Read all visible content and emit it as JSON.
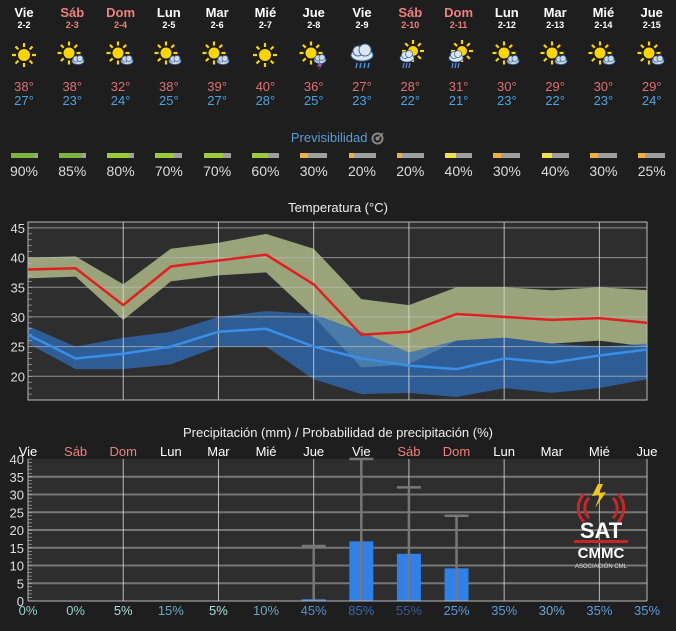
{
  "days": [
    {
      "name": "Vie",
      "date": "2-2",
      "weekend": false,
      "icon": "sun-icon",
      "max": "38°",
      "min": "27°"
    },
    {
      "name": "Sáb",
      "date": "2-3",
      "weekend": true,
      "icon": "sun-cloud-icon",
      "max": "38°",
      "min": "23°"
    },
    {
      "name": "Dom",
      "date": "2-4",
      "weekend": true,
      "icon": "sun-cloud-icon",
      "max": "32°",
      "min": "24°"
    },
    {
      "name": "Lun",
      "date": "2-5",
      "weekend": false,
      "icon": "sun-cloud-icon",
      "max": "38°",
      "min": "25°"
    },
    {
      "name": "Mar",
      "date": "2-6",
      "weekend": false,
      "icon": "sun-cloud-icon",
      "max": "39°",
      "min": "27°"
    },
    {
      "name": "Mié",
      "date": "2-7",
      "weekend": false,
      "icon": "sun-icon",
      "max": "40°",
      "min": "28°"
    },
    {
      "name": "Jue",
      "date": "2-8",
      "weekend": false,
      "icon": "sun-storm-icon",
      "max": "36°",
      "min": "25°"
    },
    {
      "name": "Vie",
      "date": "2-9",
      "weekend": false,
      "icon": "rain-cloud-icon",
      "max": "27°",
      "min": "23°"
    },
    {
      "name": "Sáb",
      "date": "2-10",
      "weekend": true,
      "icon": "sun-rain-icon",
      "max": "28°",
      "min": "22°"
    },
    {
      "name": "Dom",
      "date": "2-11",
      "weekend": true,
      "icon": "sun-rain-icon",
      "max": "31°",
      "min": "21°"
    },
    {
      "name": "Lun",
      "date": "2-12",
      "weekend": false,
      "icon": "sun-cloud-icon",
      "max": "30°",
      "min": "23°"
    },
    {
      "name": "Mar",
      "date": "2-13",
      "weekend": false,
      "icon": "sun-cloud-icon",
      "max": "29°",
      "min": "22°"
    },
    {
      "name": "Mié",
      "date": "2-14",
      "weekend": false,
      "icon": "sun-cloud-icon",
      "max": "30°",
      "min": "23°"
    },
    {
      "name": "Jue",
      "date": "2-15",
      "weekend": false,
      "icon": "sun-cloud-icon",
      "max": "29°",
      "min": "24°"
    }
  ],
  "predictability": {
    "title": "Previsibilidad",
    "icon": "target-icon",
    "values": [
      {
        "label": "90%",
        "value": 0.9,
        "color": "#7cb342"
      },
      {
        "label": "85%",
        "value": 0.85,
        "color": "#7cb342"
      },
      {
        "label": "80%",
        "value": 0.8,
        "color": "#9ccc3c"
      },
      {
        "label": "70%",
        "value": 0.7,
        "color": "#9ccc3c"
      },
      {
        "label": "70%",
        "value": 0.7,
        "color": "#9ccc3c"
      },
      {
        "label": "60%",
        "value": 0.6,
        "color": "#9ccc3c"
      },
      {
        "label": "30%",
        "value": 0.3,
        "color": "#f0b040"
      },
      {
        "label": "20%",
        "value": 0.2,
        "color": "#f0b040"
      },
      {
        "label": "20%",
        "value": 0.2,
        "color": "#f0b040"
      },
      {
        "label": "40%",
        "value": 0.4,
        "color": "#f0e050"
      },
      {
        "label": "30%",
        "value": 0.3,
        "color": "#f0b040"
      },
      {
        "label": "40%",
        "value": 0.4,
        "color": "#f0e050"
      },
      {
        "label": "30%",
        "value": 0.3,
        "color": "#f0b040"
      },
      {
        "label": "25%",
        "value": 0.25,
        "color": "#f0b040"
      }
    ]
  },
  "chart_data": [
    {
      "type": "line",
      "title": "Temperatura (°C)",
      "xlabel": "",
      "ylabel": "",
      "ylim": [
        16,
        46
      ],
      "yticks": [
        20,
        25,
        30,
        35,
        40,
        45
      ],
      "x": [
        "2-2",
        "2-3",
        "2-4",
        "2-5",
        "2-6",
        "2-7",
        "2-8",
        "2-9",
        "2-10",
        "2-11",
        "2-12",
        "2-13",
        "2-14",
        "2-15"
      ],
      "grid": true,
      "series": [
        {
          "name": "max",
          "color": "#e02020",
          "values": [
            38,
            38.2,
            32,
            38.5,
            39.5,
            40.5,
            35.5,
            27,
            27.5,
            30.5,
            30,
            29.5,
            29.8,
            29
          ]
        },
        {
          "name": "max_range_high",
          "color": "#9ba37a",
          "values": [
            40,
            40.2,
            35.5,
            41.5,
            42.5,
            44,
            41.5,
            33,
            32,
            35,
            35,
            34.5,
            35,
            34.5
          ]
        },
        {
          "name": "max_range_low",
          "color": "#9ba37a",
          "values": [
            36.5,
            36.8,
            29.5,
            36,
            37,
            37.5,
            30,
            21.5,
            22,
            26,
            26.5,
            25.5,
            26,
            25
          ]
        },
        {
          "name": "min",
          "color": "#3a8ee6",
          "values": [
            27,
            23,
            23.8,
            25,
            27.5,
            28,
            25,
            23,
            21.8,
            21.2,
            23,
            22.3,
            23.5,
            24.5
          ]
        },
        {
          "name": "min_range_high",
          "color": "#2f65a8",
          "values": [
            28.5,
            25,
            26.5,
            27.5,
            30,
            31,
            30.5,
            27.5,
            24,
            26,
            26.5,
            25.5,
            25,
            25.5
          ]
        },
        {
          "name": "min_range_low",
          "color": "#2f65a8",
          "values": [
            25.5,
            21.2,
            21.2,
            22,
            25,
            25,
            19.5,
            17,
            17.2,
            16.5,
            18,
            17.2,
            18,
            19.5
          ]
        }
      ]
    },
    {
      "type": "bar",
      "title": "Precipitación (mm) / Probabilidad de precipitación (%)",
      "xlabel": "",
      "ylabel": "",
      "ylim": [
        0,
        40
      ],
      "yticks": [
        0,
        5,
        10,
        15,
        20,
        25,
        30,
        35,
        40
      ],
      "categories": [
        "Vie",
        "Sáb",
        "Dom",
        "Lun",
        "Mar",
        "Mié",
        "Jue",
        "Vie",
        "Sáb",
        "Dom",
        "Lun",
        "Mar",
        "Mié",
        "Jue"
      ],
      "grid": true,
      "series": [
        {
          "name": "precip_mm",
          "color": "#2f80e8",
          "values": [
            0,
            0,
            0,
            0,
            0,
            0,
            0.5,
            16.8,
            13.3,
            9.2,
            0,
            0,
            0,
            0
          ]
        },
        {
          "name": "precip_max_mm",
          "color": "#777777",
          "values": [
            0,
            0,
            0,
            0,
            0,
            0,
            15.5,
            40,
            32,
            24,
            0,
            0,
            0,
            0
          ]
        }
      ],
      "probabilities": [
        "0%",
        "0%",
        "5%",
        "15%",
        "5%",
        "10%",
        "45%",
        "85%",
        "55%",
        "25%",
        "35%",
        "30%",
        "35%",
        "35%"
      ]
    }
  ],
  "logo": {
    "line1": "SAT",
    "line2": "CMMC",
    "line3": "ASOCIACIÓN CML",
    "icon": "radio-lightning-icon"
  }
}
